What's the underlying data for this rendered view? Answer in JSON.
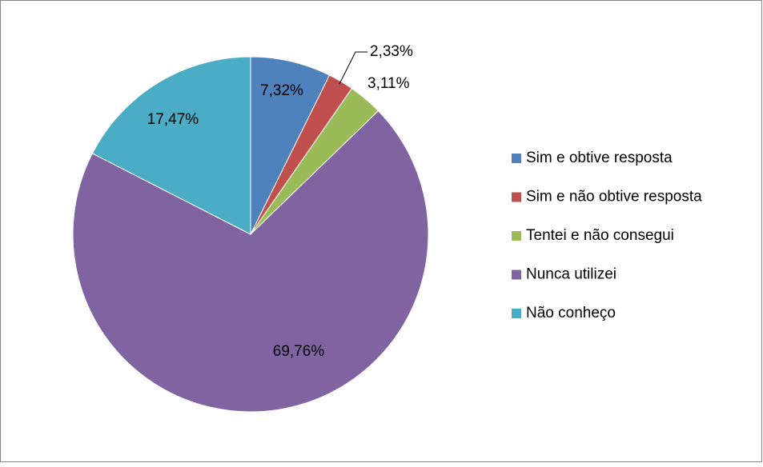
{
  "chart_data": {
    "type": "pie",
    "categories": [
      "Sim e obtive resposta",
      "Sim e não obtive resposta",
      "Tentei e não consegui",
      "Nunca utilizei",
      "Não conheço"
    ],
    "values": [
      7.32,
      2.33,
      3.11,
      69.76,
      17.47
    ],
    "value_labels": [
      "7,32%",
      "2,33%",
      "3,11%",
      "69,76%",
      "17,47%"
    ],
    "colors": [
      "#4f81bd",
      "#c0504d",
      "#9bbb59",
      "#8064a2",
      "#4bacc6"
    ],
    "legend": "right"
  }
}
